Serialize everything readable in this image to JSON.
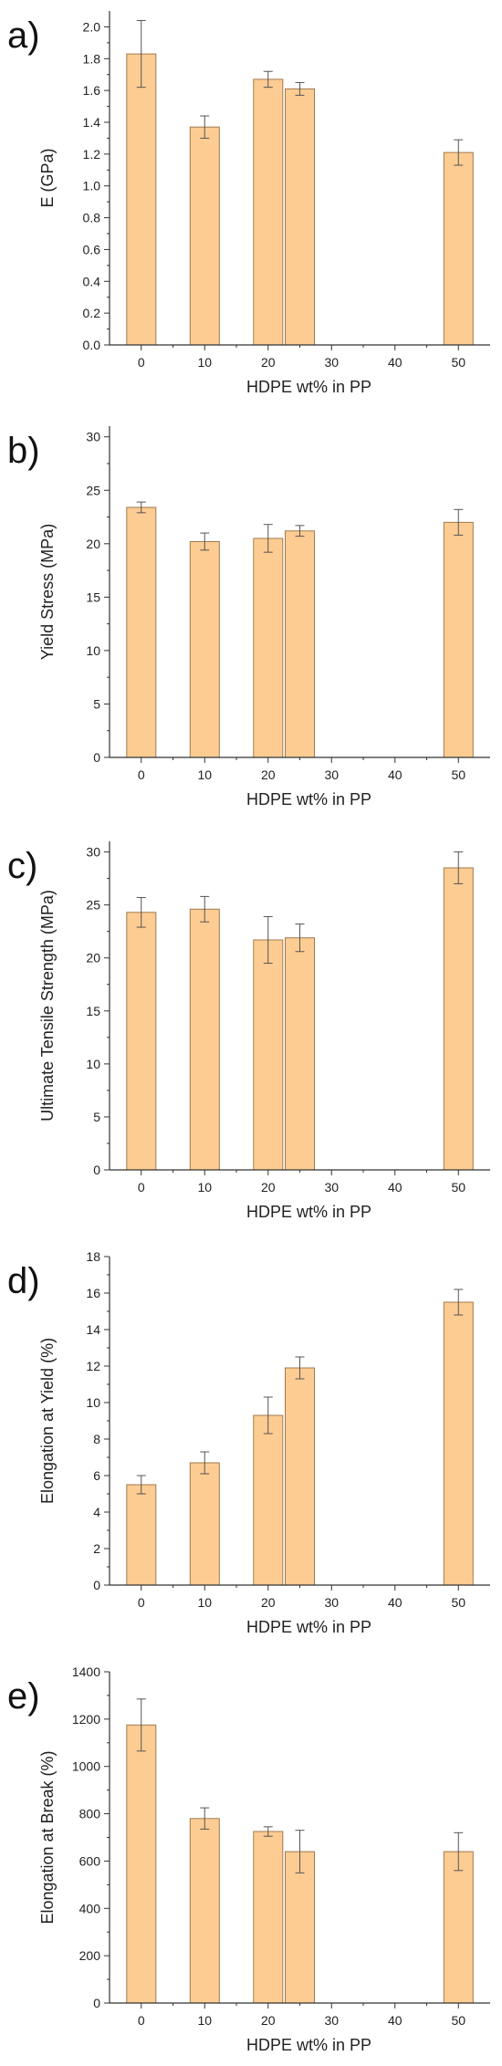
{
  "colors": {
    "bar_fill": "#fdcc92",
    "bar_stroke": "#a07a50",
    "axis": "#333333",
    "errorbar": "#555555"
  },
  "chart_data": [
    {
      "type": "bar",
      "panel_label": "a)",
      "xlabel": "HDPE wt% in PP",
      "ylabel": "E (GPa)",
      "xlim": [
        -5,
        55
      ],
      "xticks": [
        0,
        10,
        20,
        30,
        40,
        50
      ],
      "ylim": [
        0,
        2.1
      ],
      "yticks": [
        0.0,
        0.2,
        0.4,
        0.6,
        0.8,
        1.0,
        1.2,
        1.4,
        1.6,
        1.8,
        2.0
      ],
      "ytick_decimals": 1,
      "x": [
        0,
        10,
        20,
        25,
        50
      ],
      "values": [
        1.83,
        1.37,
        1.67,
        1.61,
        1.21
      ],
      "errors": [
        0.21,
        0.07,
        0.05,
        0.04,
        0.08
      ]
    },
    {
      "type": "bar",
      "panel_label": "b)",
      "xlabel": "HDPE wt% in PP",
      "ylabel": "Yield Stress (MPa)",
      "xlim": [
        -5,
        55
      ],
      "xticks": [
        0,
        10,
        20,
        30,
        40,
        50
      ],
      "ylim": [
        0,
        31
      ],
      "yticks": [
        0,
        5,
        10,
        15,
        20,
        25,
        30
      ],
      "ytick_decimals": 0,
      "x": [
        0,
        10,
        20,
        25,
        50
      ],
      "values": [
        23.4,
        20.2,
        20.5,
        21.2,
        22.0
      ],
      "errors": [
        0.5,
        0.8,
        1.3,
        0.5,
        1.2
      ]
    },
    {
      "type": "bar",
      "panel_label": "c)",
      "xlabel": "HDPE wt% in PP",
      "ylabel": "Ultimate Tensile Strength (MPa)",
      "xlim": [
        -5,
        55
      ],
      "xticks": [
        0,
        10,
        20,
        30,
        40,
        50
      ],
      "ylim": [
        0,
        31
      ],
      "yticks": [
        0,
        5,
        10,
        15,
        20,
        25,
        30
      ],
      "ytick_decimals": 0,
      "x": [
        0,
        10,
        20,
        25,
        50
      ],
      "values": [
        24.3,
        24.6,
        21.7,
        21.9,
        28.5
      ],
      "errors": [
        1.4,
        1.2,
        2.2,
        1.3,
        1.5
      ]
    },
    {
      "type": "bar",
      "panel_label": "d)",
      "xlabel": "HDPE wt% in PP",
      "ylabel": "Elongation at Yield (%)",
      "xlim": [
        -5,
        55
      ],
      "xticks": [
        0,
        10,
        20,
        30,
        40,
        50
      ],
      "ylim": [
        0,
        18
      ],
      "yticks": [
        0,
        2,
        4,
        6,
        8,
        10,
        12,
        14,
        16,
        18
      ],
      "ytick_decimals": 0,
      "x": [
        0,
        10,
        20,
        25,
        50
      ],
      "values": [
        5.5,
        6.7,
        9.3,
        11.9,
        15.5
      ],
      "errors": [
        0.5,
        0.6,
        1.0,
        0.6,
        0.7
      ]
    },
    {
      "type": "bar",
      "panel_label": "e)",
      "xlabel": "HDPE wt% in PP",
      "ylabel": "Elongation at Break (%)",
      "xlim": [
        -5,
        55
      ],
      "xticks": [
        0,
        10,
        20,
        30,
        40,
        50
      ],
      "ylim": [
        0,
        1400
      ],
      "yticks": [
        0,
        200,
        400,
        600,
        800,
        1000,
        1200,
        1400
      ],
      "ytick_decimals": 0,
      "x": [
        0,
        10,
        20,
        25,
        50
      ],
      "values": [
        1175,
        780,
        725,
        640,
        640
      ],
      "errors": [
        110,
        45,
        20,
        90,
        80
      ]
    }
  ]
}
